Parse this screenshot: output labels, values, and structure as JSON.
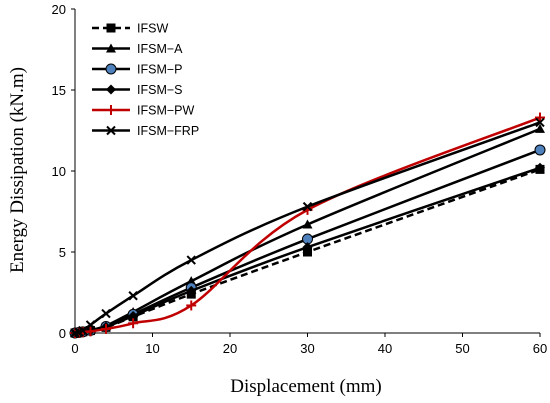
{
  "chart_data": {
    "type": "line",
    "xlabel": "Displacement (mm)",
    "ylabel": "Energy Dissipation (kN.m)",
    "xlim": [
      0,
      60
    ],
    "ylim": [
      0,
      20
    ],
    "xticks": [
      "0",
      "10",
      "20",
      "30",
      "40",
      "50",
      "60"
    ],
    "yticks": [
      "0",
      "5",
      "10",
      "15",
      "20"
    ],
    "grid": false,
    "legend": "top-left",
    "series": [
      {
        "name": "IFSW",
        "color": "#000000",
        "dash": true,
        "marker": "square",
        "x": [
          0,
          0.5,
          1,
          2,
          4,
          7.5,
          15,
          30,
          60
        ],
        "y": [
          0,
          0.03,
          0.07,
          0.15,
          0.35,
          1.0,
          2.4,
          5.0,
          10.1
        ]
      },
      {
        "name": "IFSM−A",
        "color": "#000000",
        "dash": false,
        "marker": "triangle",
        "x": [
          0,
          0.5,
          1,
          2,
          4,
          7.5,
          15,
          30,
          60
        ],
        "y": [
          0,
          0.03,
          0.08,
          0.18,
          0.45,
          1.3,
          3.2,
          6.7,
          12.6
        ]
      },
      {
        "name": "IFSM−P",
        "color": "#000000",
        "fill": "#4f81bd",
        "dash": false,
        "marker": "circle",
        "x": [
          0,
          0.5,
          1,
          2,
          4,
          7.5,
          15,
          30,
          60
        ],
        "y": [
          0,
          0.03,
          0.07,
          0.16,
          0.4,
          1.15,
          2.8,
          5.8,
          11.3
        ]
      },
      {
        "name": "IFSM−S",
        "color": "#000000",
        "dash": false,
        "marker": "diamond",
        "x": [
          0,
          0.5,
          1,
          2,
          4,
          7.5,
          15,
          30,
          60
        ],
        "y": [
          0,
          0.03,
          0.07,
          0.15,
          0.38,
          1.05,
          2.6,
          5.3,
          10.2
        ]
      },
      {
        "name": "IFSM−PW",
        "color": "#c00000",
        "dash": false,
        "marker": "plus",
        "x": [
          0,
          0.5,
          1,
          2,
          4,
          7.5,
          15,
          30,
          60
        ],
        "y": [
          0,
          0.02,
          0.05,
          0.1,
          0.25,
          0.6,
          1.7,
          7.6,
          13.3
        ]
      },
      {
        "name": "IFSM−FRP",
        "color": "#000000",
        "dash": false,
        "marker": "x",
        "x": [
          0,
          0.5,
          1,
          2,
          4,
          7.5,
          15,
          30,
          60
        ],
        "y": [
          0,
          0.05,
          0.15,
          0.5,
          1.2,
          2.3,
          4.5,
          7.8,
          13.0
        ]
      }
    ]
  }
}
